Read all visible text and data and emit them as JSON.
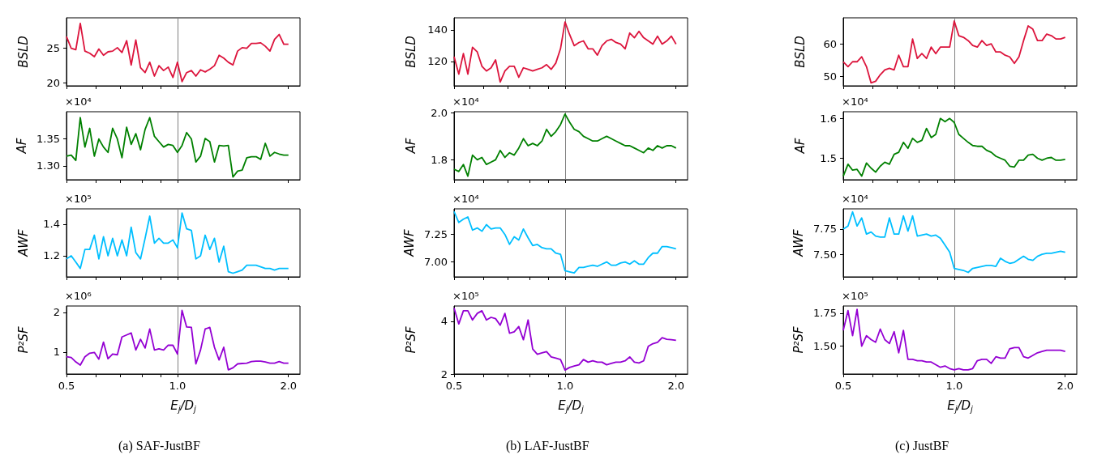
{
  "chart_data": [
    {
      "type": "line",
      "ylabel": "BSLD",
      "x": [
        0.5,
        0.515,
        0.53,
        0.545,
        0.561,
        0.578,
        0.595,
        0.612,
        0.63,
        0.648,
        0.667,
        0.687,
        0.707,
        0.728,
        0.749,
        0.771,
        0.794,
        0.817,
        0.841,
        0.866,
        0.891,
        0.917,
        0.944,
        0.972,
        1,
        1.029,
        1.059,
        1.091,
        1.122,
        1.155,
        1.189,
        1.224,
        1.26,
        1.297,
        1.335,
        1.374,
        1.414,
        1.456,
        1.498,
        1.542,
        1.587,
        1.634,
        1.682,
        1.731,
        1.782,
        1.834,
        1.888,
        1.943,
        2
      ],
      "values": [
        26.7,
        25.0,
        24.8,
        28.6,
        24.6,
        24.3,
        23.8,
        24.9,
        24.0,
        24.5,
        24.6,
        25.1,
        24.4,
        26.1,
        22.6,
        26.2,
        22.2,
        21.5,
        23.0,
        21.0,
        22.5,
        21.8,
        22.3,
        20.8,
        23.0,
        20.2,
        21.5,
        21.8,
        21.0,
        21.9,
        21.6,
        22.0,
        22.5,
        24.0,
        23.6,
        23.0,
        22.6,
        24.6,
        25.1,
        25.0,
        25.7,
        25.7,
        25.8,
        25.3,
        24.6,
        26.3,
        27.0,
        25.6,
        25.6
      ],
      "color": "#dc143c",
      "xlim": [
        0.5,
        2.15
      ],
      "xticks": [
        {
          "value": 0.5,
          "label": null
        },
        {
          "value": 0.6,
          "label": null
        },
        {
          "value": 0.7,
          "label": null
        },
        {
          "value": 0.8,
          "label": null
        },
        {
          "value": 0.9,
          "label": null
        },
        {
          "value": 1,
          "label": null
        },
        {
          "value": 2,
          "label": null
        }
      ],
      "ylim": [
        19.6,
        29.4
      ],
      "yticks": [
        20,
        25
      ],
      "log": "x",
      "marker": "none",
      "ref_lines": [
        {
          "axis": "x",
          "value": 1,
          "color": "#808080"
        }
      ],
      "tick_labels": "y"
    },
    {
      "type": "line",
      "ylabel": "AF",
      "annotations": [
        "×10⁴"
      ],
      "x": [
        0.5,
        0.515,
        0.53,
        0.545,
        0.561,
        0.578,
        0.595,
        0.612,
        0.63,
        0.648,
        0.667,
        0.687,
        0.707,
        0.728,
        0.749,
        0.771,
        0.794,
        0.817,
        0.841,
        0.866,
        0.891,
        0.917,
        0.944,
        0.972,
        1,
        1.029,
        1.059,
        1.091,
        1.122,
        1.155,
        1.189,
        1.224,
        1.26,
        1.297,
        1.335,
        1.374,
        1.414,
        1.456,
        1.498,
        1.542,
        1.587,
        1.634,
        1.682,
        1.731,
        1.782,
        1.834,
        1.888,
        1.943,
        2
      ],
      "values": [
        1.318,
        1.32,
        1.31,
        1.39,
        1.335,
        1.37,
        1.318,
        1.35,
        1.335,
        1.325,
        1.37,
        1.35,
        1.315,
        1.372,
        1.34,
        1.36,
        1.33,
        1.368,
        1.39,
        1.355,
        1.345,
        1.335,
        1.34,
        1.338,
        1.325,
        1.338,
        1.362,
        1.35,
        1.307,
        1.318,
        1.351,
        1.345,
        1.307,
        1.338,
        1.337,
        1.338,
        1.279,
        1.29,
        1.292,
        1.315,
        1.317,
        1.317,
        1.312,
        1.342,
        1.318,
        1.325,
        1.322,
        1.32,
        1.32
      ],
      "color": "#008000",
      "xlim": [
        0.5,
        2.15
      ],
      "xticks": [
        {
          "value": 0.5,
          "label": null
        },
        {
          "value": 0.6,
          "label": null
        },
        {
          "value": 0.7,
          "label": null
        },
        {
          "value": 0.8,
          "label": null
        },
        {
          "value": 0.9,
          "label": null
        },
        {
          "value": 1,
          "label": null
        },
        {
          "value": 2,
          "label": null
        }
      ],
      "ylim": [
        1.274,
        1.401
      ],
      "yticks": [
        {
          "value": 1.3,
          "label": "1.30"
        },
        {
          "value": 1.35,
          "label": "1.35"
        }
      ],
      "log": "x",
      "marker": "none",
      "ref_lines": [
        {
          "axis": "x",
          "value": 1,
          "color": "#808080"
        }
      ],
      "tick_labels": "y"
    },
    {
      "type": "line",
      "ylabel": "AWF",
      "annotations": [
        "×10⁵"
      ],
      "x": [
        0.5,
        0.515,
        0.53,
        0.545,
        0.561,
        0.578,
        0.595,
        0.612,
        0.63,
        0.648,
        0.667,
        0.687,
        0.707,
        0.728,
        0.749,
        0.771,
        0.794,
        0.817,
        0.841,
        0.866,
        0.891,
        0.917,
        0.944,
        0.972,
        1,
        1.029,
        1.059,
        1.091,
        1.122,
        1.155,
        1.189,
        1.224,
        1.26,
        1.297,
        1.335,
        1.374,
        1.414,
        1.456,
        1.498,
        1.542,
        1.587,
        1.634,
        1.682,
        1.731,
        1.782,
        1.834,
        1.888,
        1.943,
        2
      ],
      "values": [
        1.18,
        1.2,
        1.16,
        1.12,
        1.24,
        1.24,
        1.33,
        1.18,
        1.32,
        1.2,
        1.31,
        1.2,
        1.3,
        1.2,
        1.38,
        1.22,
        1.18,
        1.31,
        1.45,
        1.28,
        1.31,
        1.28,
        1.28,
        1.3,
        1.25,
        1.47,
        1.37,
        1.36,
        1.18,
        1.2,
        1.33,
        1.24,
        1.31,
        1.16,
        1.26,
        1.1,
        1.09,
        1.1,
        1.11,
        1.14,
        1.14,
        1.14,
        1.13,
        1.12,
        1.12,
        1.11,
        1.12,
        1.12,
        1.12
      ],
      "color": "#00bfff",
      "xlim": [
        0.5,
        2.15
      ],
      "xticks": [
        {
          "value": 0.5,
          "label": null
        },
        {
          "value": 0.6,
          "label": null
        },
        {
          "value": 0.7,
          "label": null
        },
        {
          "value": 0.8,
          "label": null
        },
        {
          "value": 0.9,
          "label": null
        },
        {
          "value": 1,
          "label": null
        },
        {
          "value": 2,
          "label": null
        }
      ],
      "ylim": [
        1.067,
        1.496
      ],
      "yticks": [
        1.2,
        1.4
      ],
      "log": "x",
      "marker": "none",
      "ref_lines": [
        {
          "axis": "x",
          "value": 1,
          "color": "#808080"
        }
      ],
      "tick_labels": "y"
    },
    {
      "type": "line",
      "ylabel": "P²SF",
      "xlabel": "E$_{j}$/D$_{j}$",
      "title": "(a) SAF-JustBF",
      "annotations": [
        "×10⁶"
      ],
      "x": [
        0.5,
        0.515,
        0.53,
        0.545,
        0.561,
        0.578,
        0.595,
        0.612,
        0.63,
        0.648,
        0.667,
        0.687,
        0.707,
        0.728,
        0.749,
        0.771,
        0.794,
        0.817,
        0.841,
        0.866,
        0.891,
        0.917,
        0.944,
        0.972,
        1,
        1.029,
        1.059,
        1.091,
        1.122,
        1.155,
        1.189,
        1.224,
        1.26,
        1.297,
        1.335,
        1.374,
        1.414,
        1.456,
        1.498,
        1.542,
        1.587,
        1.634,
        1.682,
        1.731,
        1.782,
        1.834,
        1.888,
        1.943,
        2
      ],
      "values": [
        0.88,
        0.86,
        0.75,
        0.67,
        0.88,
        0.97,
        0.99,
        0.82,
        1.25,
        0.83,
        0.95,
        0.93,
        1.38,
        1.43,
        1.48,
        1.05,
        1.32,
        1.1,
        1.58,
        1.05,
        1.08,
        1.05,
        1.17,
        1.17,
        0.95,
        2.05,
        1.63,
        1.62,
        0.7,
        1.05,
        1.58,
        1.62,
        1.12,
        0.8,
        1.12,
        0.55,
        0.6,
        0.7,
        0.71,
        0.72,
        0.76,
        0.77,
        0.77,
        0.75,
        0.72,
        0.72,
        0.76,
        0.72,
        0.72
      ],
      "color": "#9400d3",
      "xlim": [
        0.5,
        2.15
      ],
      "xticks": [
        {
          "value": 0.5,
          "label": "0.5"
        },
        {
          "value": 0.6,
          "label": null
        },
        {
          "value": 0.7,
          "label": null
        },
        {
          "value": 0.8,
          "label": null
        },
        {
          "value": 0.9,
          "label": null
        },
        {
          "value": 1,
          "label": "1.0"
        },
        {
          "value": 2,
          "label": "2.0"
        }
      ],
      "ylim": [
        0.445,
        2.16
      ],
      "yticks": [
        1,
        2
      ],
      "log": "x",
      "marker": "none",
      "ref_lines": [
        {
          "axis": "x",
          "value": 1,
          "color": "#808080"
        }
      ]
    },
    {
      "type": "line",
      "ylabel": "BSLD",
      "x": [
        0.5,
        0.515,
        0.53,
        0.545,
        0.561,
        0.578,
        0.595,
        0.612,
        0.63,
        0.648,
        0.667,
        0.687,
        0.707,
        0.728,
        0.749,
        0.771,
        0.794,
        0.817,
        0.841,
        0.866,
        0.891,
        0.917,
        0.944,
        0.972,
        1,
        1.029,
        1.059,
        1.091,
        1.122,
        1.155,
        1.189,
        1.224,
        1.26,
        1.297,
        1.335,
        1.374,
        1.414,
        1.456,
        1.498,
        1.542,
        1.587,
        1.634,
        1.682,
        1.731,
        1.782,
        1.834,
        1.888,
        1.943,
        2
      ],
      "values": [
        123,
        112,
        125,
        112,
        129,
        126,
        117,
        114,
        116,
        121,
        107,
        114,
        117,
        117,
        110,
        116,
        115,
        114,
        115,
        116,
        118,
        115,
        119,
        128,
        145,
        137,
        130,
        132,
        133,
        128,
        128,
        124,
        130,
        133,
        134,
        132,
        131,
        128,
        138,
        135,
        139,
        135,
        133,
        131,
        136,
        131,
        133,
        136,
        131
      ],
      "color": "#dc143c",
      "xlim": [
        0.5,
        2.15
      ],
      "xticks": [
        {
          "value": 0.5,
          "label": null
        },
        {
          "value": 0.6,
          "label": null
        },
        {
          "value": 0.7,
          "label": null
        },
        {
          "value": 0.8,
          "label": null
        },
        {
          "value": 0.9,
          "label": null
        },
        {
          "value": 1,
          "label": null
        },
        {
          "value": 2,
          "label": null
        }
      ],
      "ylim": [
        104.6,
        147.6
      ],
      "yticks": [
        120,
        140
      ],
      "log": "x",
      "marker": "none",
      "ref_lines": [
        {
          "axis": "x",
          "value": 1,
          "color": "#808080"
        }
      ],
      "tick_labels": "y"
    },
    {
      "type": "line",
      "ylabel": "AF",
      "annotations": [
        "×10⁴"
      ],
      "x": [
        0.5,
        0.515,
        0.53,
        0.545,
        0.561,
        0.578,
        0.595,
        0.612,
        0.63,
        0.648,
        0.667,
        0.687,
        0.707,
        0.728,
        0.749,
        0.771,
        0.794,
        0.817,
        0.841,
        0.866,
        0.891,
        0.917,
        0.944,
        0.972,
        1,
        1.029,
        1.059,
        1.091,
        1.122,
        1.155,
        1.189,
        1.224,
        1.26,
        1.297,
        1.335,
        1.374,
        1.414,
        1.456,
        1.498,
        1.542,
        1.587,
        1.634,
        1.682,
        1.731,
        1.782,
        1.834,
        1.888,
        1.943,
        2
      ],
      "values": [
        1.76,
        1.75,
        1.78,
        1.73,
        1.82,
        1.8,
        1.81,
        1.78,
        1.79,
        1.8,
        1.84,
        1.81,
        1.83,
        1.82,
        1.85,
        1.89,
        1.86,
        1.87,
        1.86,
        1.88,
        1.93,
        1.9,
        1.92,
        1.95,
        1.995,
        1.96,
        1.93,
        1.92,
        1.9,
        1.89,
        1.88,
        1.88,
        1.89,
        1.9,
        1.89,
        1.88,
        1.87,
        1.86,
        1.86,
        1.85,
        1.84,
        1.83,
        1.85,
        1.84,
        1.86,
        1.85,
        1.86,
        1.86,
        1.85
      ],
      "color": "#008000",
      "xlim": [
        0.5,
        2.15
      ],
      "xticks": [
        {
          "value": 0.5,
          "label": null
        },
        {
          "value": 0.6,
          "label": null
        },
        {
          "value": 0.7,
          "label": null
        },
        {
          "value": 0.8,
          "label": null
        },
        {
          "value": 0.9,
          "label": null
        },
        {
          "value": 1,
          "label": null
        },
        {
          "value": 2,
          "label": null
        }
      ],
      "ylim": [
        1.715,
        2.005
      ],
      "yticks": [
        1.8,
        {
          "value": 2,
          "label": "2.0"
        }
      ],
      "log": "x",
      "marker": "none",
      "ref_lines": [
        {
          "axis": "x",
          "value": 1,
          "color": "#808080"
        }
      ],
      "tick_labels": "y"
    },
    {
      "type": "line",
      "ylabel": "AWF",
      "annotations": [
        "×10⁴"
      ],
      "x": [
        0.5,
        0.515,
        0.53,
        0.545,
        0.561,
        0.578,
        0.595,
        0.612,
        0.63,
        0.648,
        0.667,
        0.687,
        0.707,
        0.728,
        0.749,
        0.771,
        0.794,
        0.817,
        0.841,
        0.866,
        0.891,
        0.917,
        0.944,
        0.972,
        1,
        1.029,
        1.059,
        1.091,
        1.122,
        1.155,
        1.189,
        1.224,
        1.26,
        1.297,
        1.335,
        1.374,
        1.414,
        1.456,
        1.498,
        1.542,
        1.587,
        1.634,
        1.682,
        1.731,
        1.782,
        1.834,
        1.888,
        1.943,
        2
      ],
      "values": [
        7.46,
        7.36,
        7.39,
        7.41,
        7.29,
        7.31,
        7.28,
        7.34,
        7.3,
        7.31,
        7.31,
        7.25,
        7.16,
        7.23,
        7.2,
        7.3,
        7.22,
        7.15,
        7.16,
        7.13,
        7.12,
        7.12,
        7.08,
        7.07,
        6.92,
        6.91,
        6.9,
        6.95,
        6.95,
        6.96,
        6.97,
        6.96,
        6.98,
        7.0,
        6.97,
        6.97,
        6.99,
        7.0,
        6.98,
        7.01,
        6.98,
        6.98,
        7.04,
        7.08,
        7.08,
        7.14,
        7.14,
        7.13,
        7.12
      ],
      "color": "#00bfff",
      "xlim": [
        0.5,
        2.15
      ],
      "xticks": [
        {
          "value": 0.5,
          "label": null
        },
        {
          "value": 0.6,
          "label": null
        },
        {
          "value": 0.7,
          "label": null
        },
        {
          "value": 0.8,
          "label": null
        },
        {
          "value": 0.9,
          "label": null
        },
        {
          "value": 1,
          "label": null
        },
        {
          "value": 2,
          "label": null
        }
      ],
      "ylim": [
        6.864,
        7.484
      ],
      "yticks": [
        {
          "value": 7,
          "label": "7.00"
        },
        7.25
      ],
      "log": "x",
      "marker": "none",
      "ref_lines": [
        {
          "axis": "x",
          "value": 1,
          "color": "#808080"
        }
      ],
      "tick_labels": "y"
    },
    {
      "type": "line",
      "ylabel": "P²SF",
      "xlabel": "E$_{j}$/D$_{j}$",
      "title": "(b) LAF-JustBF",
      "annotations": [
        "×10⁵"
      ],
      "x": [
        0.5,
        0.515,
        0.53,
        0.545,
        0.561,
        0.578,
        0.595,
        0.612,
        0.63,
        0.648,
        0.667,
        0.687,
        0.707,
        0.728,
        0.749,
        0.771,
        0.794,
        0.817,
        0.841,
        0.866,
        0.891,
        0.917,
        0.944,
        0.972,
        1,
        1.029,
        1.059,
        1.091,
        1.122,
        1.155,
        1.189,
        1.224,
        1.26,
        1.297,
        1.335,
        1.374,
        1.414,
        1.456,
        1.498,
        1.542,
        1.587,
        1.634,
        1.682,
        1.731,
        1.782,
        1.834,
        1.888,
        1.943,
        2
      ],
      "values": [
        4.5,
        3.9,
        4.4,
        4.4,
        4.05,
        4.3,
        4.4,
        4.05,
        4.15,
        4.1,
        3.85,
        4.3,
        3.55,
        3.6,
        3.8,
        3.3,
        4.05,
        2.95,
        2.75,
        2.8,
        2.85,
        2.65,
        2.6,
        2.55,
        2.15,
        2.25,
        2.3,
        2.35,
        2.55,
        2.45,
        2.5,
        2.45,
        2.45,
        2.35,
        2.4,
        2.45,
        2.45,
        2.5,
        2.65,
        2.45,
        2.42,
        2.5,
        3.05,
        3.15,
        3.2,
        3.38,
        3.32,
        3.3,
        3.28
      ],
      "color": "#9400d3",
      "xlim": [
        0.5,
        2.15
      ],
      "xticks": [
        {
          "value": 0.5,
          "label": "0.5"
        },
        {
          "value": 0.6,
          "label": null
        },
        {
          "value": 0.7,
          "label": null
        },
        {
          "value": 0.8,
          "label": null
        },
        {
          "value": 0.9,
          "label": null
        },
        {
          "value": 1,
          "label": "1.0"
        },
        {
          "value": 2,
          "label": "2.0"
        }
      ],
      "ylim": [
        2,
        4.58
      ],
      "yticks": [
        2,
        4
      ],
      "log": "x",
      "marker": "none",
      "ref_lines": [
        {
          "axis": "x",
          "value": 1,
          "color": "#808080"
        }
      ]
    },
    {
      "type": "line",
      "ylabel": "BSLD",
      "x": [
        0.5,
        0.515,
        0.53,
        0.545,
        0.561,
        0.578,
        0.595,
        0.612,
        0.63,
        0.648,
        0.667,
        0.687,
        0.707,
        0.728,
        0.749,
        0.771,
        0.794,
        0.817,
        0.841,
        0.866,
        0.891,
        0.917,
        0.944,
        0.972,
        1,
        1.029,
        1.059,
        1.091,
        1.122,
        1.155,
        1.189,
        1.224,
        1.26,
        1.297,
        1.335,
        1.374,
        1.414,
        1.456,
        1.498,
        1.542,
        1.587,
        1.634,
        1.682,
        1.731,
        1.782,
        1.834,
        1.888,
        1.943,
        2
      ],
      "values": [
        54.5,
        53,
        54.5,
        54.5,
        56,
        53,
        48,
        48.5,
        50.5,
        52,
        52.5,
        52,
        56.5,
        53,
        53,
        61.5,
        55.5,
        57,
        55.5,
        59,
        57,
        59,
        59,
        59,
        67,
        62.5,
        62,
        61,
        59.5,
        59,
        61,
        59.5,
        60,
        57.5,
        57.5,
        56.5,
        56,
        54,
        56,
        61,
        65.5,
        64.5,
        61,
        61,
        63,
        62.5,
        61.5,
        61.5,
        62
      ],
      "color": "#dc143c",
      "xlim": [
        0.5,
        2.15
      ],
      "xticks": [
        {
          "value": 0.5,
          "label": null
        },
        {
          "value": 0.6,
          "label": null
        },
        {
          "value": 0.7,
          "label": null
        },
        {
          "value": 0.8,
          "label": null
        },
        {
          "value": 0.9,
          "label": null
        },
        {
          "value": 1,
          "label": null
        },
        {
          "value": 2,
          "label": null
        }
      ],
      "ylim": [
        47.1,
        68
      ],
      "yticks": [
        50,
        60
      ],
      "log": "x",
      "marker": "none",
      "ref_lines": [
        {
          "axis": "x",
          "value": 1,
          "color": "#808080"
        }
      ],
      "tick_labels": "y"
    },
    {
      "type": "line",
      "ylabel": "AF",
      "annotations": [
        "×10⁴"
      ],
      "x": [
        0.5,
        0.515,
        0.53,
        0.545,
        0.561,
        0.578,
        0.595,
        0.612,
        0.63,
        0.648,
        0.667,
        0.687,
        0.707,
        0.728,
        0.749,
        0.771,
        0.794,
        0.817,
        0.841,
        0.866,
        0.891,
        0.917,
        0.944,
        0.972,
        1,
        1.029,
        1.059,
        1.091,
        1.122,
        1.155,
        1.189,
        1.224,
        1.26,
        1.297,
        1.335,
        1.374,
        1.414,
        1.456,
        1.498,
        1.542,
        1.587,
        1.634,
        1.682,
        1.731,
        1.782,
        1.834,
        1.888,
        1.943,
        2
      ],
      "values": [
        1.455,
        1.485,
        1.47,
        1.472,
        1.455,
        1.488,
        1.475,
        1.465,
        1.48,
        1.49,
        1.485,
        1.51,
        1.515,
        1.54,
        1.525,
        1.55,
        1.54,
        1.545,
        1.575,
        1.552,
        1.56,
        1.6,
        1.592,
        1.6,
        1.59,
        1.56,
        1.55,
        1.54,
        1.532,
        1.53,
        1.53,
        1.52,
        1.515,
        1.505,
        1.5,
        1.495,
        1.48,
        1.478,
        1.495,
        1.495,
        1.508,
        1.51,
        1.5,
        1.495,
        1.5,
        1.502,
        1.495,
        1.495,
        1.497
      ],
      "color": "#008000",
      "xlim": [
        0.5,
        2.15
      ],
      "xticks": [
        {
          "value": 0.5,
          "label": null
        },
        {
          "value": 0.6,
          "label": null
        },
        {
          "value": 0.7,
          "label": null
        },
        {
          "value": 0.8,
          "label": null
        },
        {
          "value": 0.9,
          "label": null
        },
        {
          "value": 1,
          "label": null
        },
        {
          "value": 2,
          "label": null
        }
      ],
      "ylim": [
        1.446,
        1.617
      ],
      "yticks": [
        1.5,
        1.6
      ],
      "log": "x",
      "marker": "none",
      "ref_lines": [
        {
          "axis": "x",
          "value": 1,
          "color": "#808080"
        }
      ],
      "tick_labels": "y"
    },
    {
      "type": "line",
      "ylabel": "AWF",
      "annotations": [
        "×10⁴"
      ],
      "x": [
        0.5,
        0.515,
        0.53,
        0.545,
        0.561,
        0.578,
        0.595,
        0.612,
        0.63,
        0.648,
        0.667,
        0.687,
        0.707,
        0.728,
        0.749,
        0.771,
        0.794,
        0.817,
        0.841,
        0.866,
        0.891,
        0.917,
        0.944,
        0.972,
        1,
        1.029,
        1.059,
        1.091,
        1.122,
        1.155,
        1.189,
        1.224,
        1.26,
        1.297,
        1.335,
        1.374,
        1.414,
        1.456,
        1.498,
        1.542,
        1.587,
        1.634,
        1.682,
        1.731,
        1.782,
        1.834,
        1.888,
        1.943,
        2
      ],
      "values": [
        7.75,
        7.78,
        7.92,
        7.78,
        7.86,
        7.7,
        7.72,
        7.68,
        7.67,
        7.67,
        7.86,
        7.7,
        7.7,
        7.88,
        7.73,
        7.88,
        7.68,
        7.69,
        7.7,
        7.68,
        7.69,
        7.66,
        7.59,
        7.52,
        7.36,
        7.35,
        7.34,
        7.32,
        7.36,
        7.37,
        7.38,
        7.39,
        7.39,
        7.38,
        7.46,
        7.43,
        7.41,
        7.42,
        7.45,
        7.48,
        7.45,
        7.44,
        7.48,
        7.5,
        7.51,
        7.51,
        7.52,
        7.53,
        7.52
      ],
      "color": "#00bfff",
      "xlim": [
        0.5,
        2.15
      ],
      "xticks": [
        {
          "value": 0.5,
          "label": null
        },
        {
          "value": 0.6,
          "label": null
        },
        {
          "value": 0.7,
          "label": null
        },
        {
          "value": 0.8,
          "label": null
        },
        {
          "value": 0.9,
          "label": null
        },
        {
          "value": 1,
          "label": null
        },
        {
          "value": 2,
          "label": null
        }
      ],
      "ylim": [
        7.276,
        7.95
      ],
      "yticks": [
        {
          "value": 7.5,
          "label": "7.50"
        },
        7.75
      ],
      "log": "x",
      "marker": "none",
      "ref_lines": [
        {
          "axis": "x",
          "value": 1,
          "color": "#808080"
        }
      ],
      "tick_labels": "y"
    },
    {
      "type": "line",
      "ylabel": "P²SF",
      "xlabel": "E$_{j}$/D$_{j}$",
      "title": "(c) JustBF",
      "annotations": [
        "×10⁵"
      ],
      "x": [
        0.5,
        0.515,
        0.53,
        0.545,
        0.561,
        0.578,
        0.595,
        0.612,
        0.63,
        0.648,
        0.667,
        0.687,
        0.707,
        0.728,
        0.749,
        0.771,
        0.794,
        0.817,
        0.841,
        0.866,
        0.891,
        0.917,
        0.944,
        0.972,
        1,
        1.029,
        1.059,
        1.091,
        1.122,
        1.155,
        1.189,
        1.224,
        1.26,
        1.297,
        1.335,
        1.374,
        1.414,
        1.456,
        1.498,
        1.542,
        1.587,
        1.634,
        1.682,
        1.731,
        1.782,
        1.834,
        1.888,
        1.943,
        2
      ],
      "values": [
        1.62,
        1.77,
        1.58,
        1.78,
        1.5,
        1.58,
        1.55,
        1.53,
        1.63,
        1.55,
        1.52,
        1.61,
        1.45,
        1.62,
        1.4,
        1.4,
        1.39,
        1.39,
        1.38,
        1.38,
        1.36,
        1.34,
        1.35,
        1.33,
        1.32,
        1.33,
        1.32,
        1.32,
        1.33,
        1.39,
        1.4,
        1.4,
        1.37,
        1.42,
        1.41,
        1.41,
        1.48,
        1.49,
        1.49,
        1.42,
        1.41,
        1.43,
        1.45,
        1.46,
        1.47,
        1.47,
        1.47,
        1.47,
        1.46
      ],
      "color": "#9400d3",
      "xlim": [
        0.5,
        2.15
      ],
      "xticks": [
        {
          "value": 0.5,
          "label": "0.5"
        },
        {
          "value": 0.6,
          "label": null
        },
        {
          "value": 0.7,
          "label": null
        },
        {
          "value": 0.8,
          "label": null
        },
        {
          "value": 0.9,
          "label": null
        },
        {
          "value": 1,
          "label": "1.0"
        },
        {
          "value": 2,
          "label": "2.0"
        }
      ],
      "ylim": [
        1.289,
        1.805
      ],
      "yticks": [
        {
          "value": 1.5,
          "label": "1.50"
        },
        1.75
      ],
      "log": "x",
      "marker": "none",
      "ref_lines": [
        {
          "axis": "x",
          "value": 1,
          "color": "#808080"
        }
      ]
    }
  ]
}
